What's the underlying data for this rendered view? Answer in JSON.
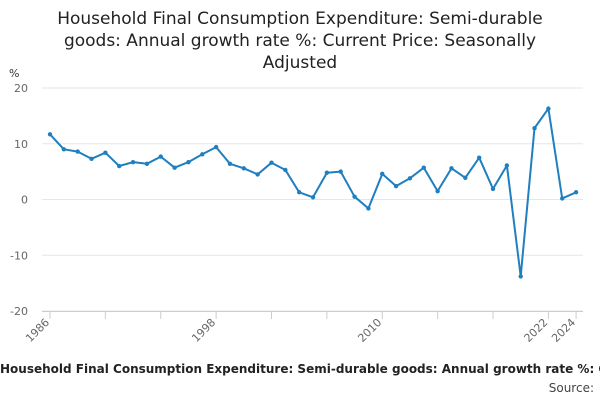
{
  "chart_data": {
    "type": "line",
    "title": "Household Final Consumption Expenditure: Semi-durable goods: Annual growth rate %: Current Price: Seasonally Adjusted",
    "title_lines": [
      "Household Final Consumption Expenditure: Semi-durable",
      "goods: Annual growth rate %: Current Price: Seasonally",
      "Adjusted"
    ],
    "ylabel": "%",
    "xlabel": "",
    "ylim": [
      -20,
      20
    ],
    "yticks": [
      20,
      10,
      0,
      -10,
      -20
    ],
    "xlim": [
      1986,
      2024.5
    ],
    "xtick_labels": [
      "1986",
      "1998",
      "2010",
      "2022",
      "2024"
    ],
    "grid": true,
    "line_color": "#1f7fbf",
    "series": [
      {
        "name": "Annual growth rate %",
        "x": [
          1986,
          1987,
          1988,
          1989,
          1990,
          1991,
          1992,
          1993,
          1994,
          1995,
          1996,
          1997,
          1998,
          1999,
          2000,
          2001,
          2002,
          2003,
          2004,
          2005,
          2006,
          2007,
          2008,
          2009,
          2010,
          2011,
          2012,
          2013,
          2014,
          2015,
          2016,
          2017,
          2018,
          2019,
          2020,
          2021,
          2022,
          2023,
          2024
        ],
        "values": [
          11.7,
          9.0,
          8.6,
          7.3,
          8.4,
          6.0,
          6.7,
          6.4,
          7.7,
          5.7,
          6.7,
          8.1,
          9.4,
          6.4,
          5.6,
          4.5,
          6.6,
          5.3,
          1.3,
          0.4,
          4.8,
          5.0,
          0.5,
          -1.6,
          4.6,
          2.4,
          3.8,
          5.7,
          1.5,
          5.6,
          3.9,
          7.5,
          1.9,
          6.1,
          -13.8,
          12.8,
          16.3,
          0.2,
          1.3
        ]
      }
    ]
  },
  "footer": {
    "caption": "Household Final Consumption Expenditure: Semi-durable goods: Annual growth rate %: Current Price: Seasonally Adjusted",
    "source_label": "Source:"
  }
}
